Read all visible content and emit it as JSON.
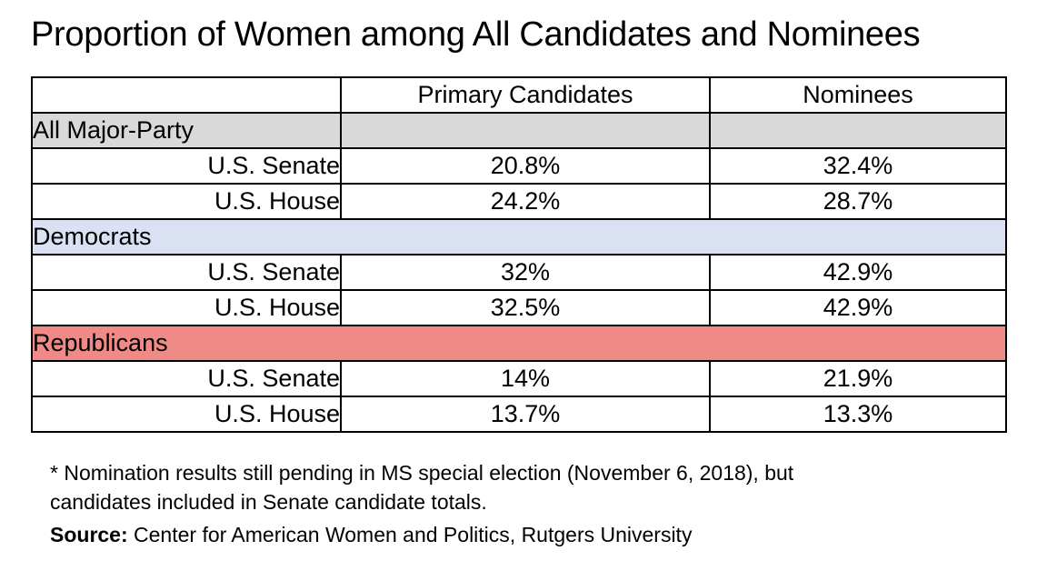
{
  "title": "Proportion of Women among All Candidates and Nominees",
  "colors": {
    "major_party": "#d9d9d9",
    "democrats": "#d9e1f3",
    "republicans": "#f08a86"
  },
  "chart_data": {
    "type": "table",
    "columns": [
      "",
      "Primary Candidates",
      "Nominees"
    ],
    "groups": [
      {
        "name": "All Major-Party",
        "rows": [
          {
            "office": "U.S. Senate",
            "primary": "20.8%",
            "nominees": "32.4%"
          },
          {
            "office": "U.S. House",
            "primary": "24.2%",
            "nominees": "28.7%"
          }
        ]
      },
      {
        "name": "Democrats",
        "rows": [
          {
            "office": "U.S. Senate",
            "primary": "32%",
            "nominees": "42.9%"
          },
          {
            "office": "U.S. House",
            "primary": "32.5%",
            "nominees": "42.9%"
          }
        ]
      },
      {
        "name": "Republicans",
        "rows": [
          {
            "office": "U.S. Senate",
            "primary": "14%",
            "nominees": "21.9%"
          },
          {
            "office": "U.S. House",
            "primary": "13.7%",
            "nominees": "13.3%"
          }
        ]
      }
    ]
  },
  "footnote": {
    "line1": "* Nomination results still pending in MS special election (November 6, 2018), but",
    "line2": "candidates included in Senate candidate totals.",
    "source_label": "Source:",
    "source_text": " Center for American Women and Politics, Rutgers University"
  }
}
